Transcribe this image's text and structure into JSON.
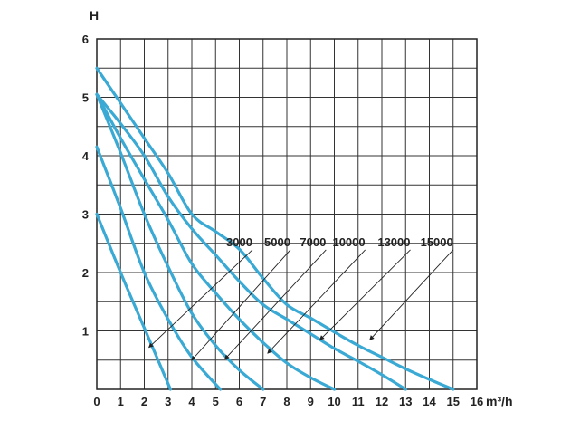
{
  "chart_data": {
    "type": "line",
    "xlabel": "m³/h",
    "ylabel": "H",
    "xlim": [
      0,
      16
    ],
    "ylim": [
      0,
      6
    ],
    "x_ticks": [
      "0",
      "1",
      "2",
      "3",
      "4",
      "5",
      "6",
      "7",
      "8",
      "9",
      "10",
      "11",
      "12",
      "13",
      "14",
      "15",
      "16"
    ],
    "y_ticks": [
      "1",
      "2",
      "3",
      "4",
      "5",
      "6"
    ],
    "grid": true,
    "line_color": "#3aa9d4",
    "series": [
      {
        "name": "3000",
        "points": [
          [
            0,
            3.0
          ],
          [
            1,
            2.0
          ],
          [
            2,
            1.05
          ],
          [
            3.1,
            0
          ]
        ],
        "label_at": [
          2.2,
          0.72
        ]
      },
      {
        "name": "5000",
        "points": [
          [
            0,
            4.15
          ],
          [
            1,
            3.1
          ],
          [
            2,
            2.0
          ],
          [
            3,
            1.2
          ],
          [
            4,
            0.55
          ],
          [
            5.2,
            0
          ]
        ],
        "label_at": [
          4.0,
          0.5
        ]
      },
      {
        "name": "7000",
        "points": [
          [
            0,
            5.05
          ],
          [
            1,
            4.05
          ],
          [
            2,
            3.0
          ],
          [
            3,
            2.1
          ],
          [
            4,
            1.3
          ],
          [
            5,
            0.75
          ],
          [
            6,
            0.33
          ],
          [
            7,
            0
          ]
        ],
        "label_at": [
          5.4,
          0.52
        ]
      },
      {
        "name": "10000",
        "points": [
          [
            0,
            5.05
          ],
          [
            1,
            4.3
          ],
          [
            2,
            3.6
          ],
          [
            3,
            2.9
          ],
          [
            4,
            2.15
          ],
          [
            5,
            1.65
          ],
          [
            6,
            1.2
          ],
          [
            7,
            0.8
          ],
          [
            8,
            0.45
          ],
          [
            9,
            0.2
          ],
          [
            10,
            0
          ]
        ],
        "label_at": [
          7.2,
          0.62
        ]
      },
      {
        "name": "13000",
        "points": [
          [
            0,
            5.05
          ],
          [
            1,
            4.55
          ],
          [
            2,
            4.0
          ],
          [
            3,
            3.3
          ],
          [
            4,
            2.75
          ],
          [
            5,
            2.3
          ],
          [
            6,
            1.85
          ],
          [
            7,
            1.45
          ],
          [
            8,
            1.2
          ],
          [
            9,
            0.95
          ],
          [
            10,
            0.7
          ],
          [
            11,
            0.48
          ],
          [
            12,
            0.25
          ],
          [
            13,
            0
          ]
        ],
        "label_at": [
          9.4,
          0.85
        ]
      },
      {
        "name": "15000",
        "points": [
          [
            0,
            5.5
          ],
          [
            1,
            4.9
          ],
          [
            2,
            4.3
          ],
          [
            3,
            3.7
          ],
          [
            4,
            3.0
          ],
          [
            5,
            2.7
          ],
          [
            6,
            2.4
          ],
          [
            7,
            1.9
          ],
          [
            8,
            1.45
          ],
          [
            9,
            1.22
          ],
          [
            10,
            0.98
          ],
          [
            11,
            0.75
          ],
          [
            12,
            0.55
          ],
          [
            13,
            0.35
          ],
          [
            14,
            0.17
          ],
          [
            15,
            0
          ]
        ],
        "label_at": [
          11.5,
          0.85
        ]
      }
    ],
    "callouts_label_y": 2.45,
    "callout_label_x": [
      6.55,
      8.15,
      9.65,
      11.3,
      13.2,
      15.0
    ]
  }
}
